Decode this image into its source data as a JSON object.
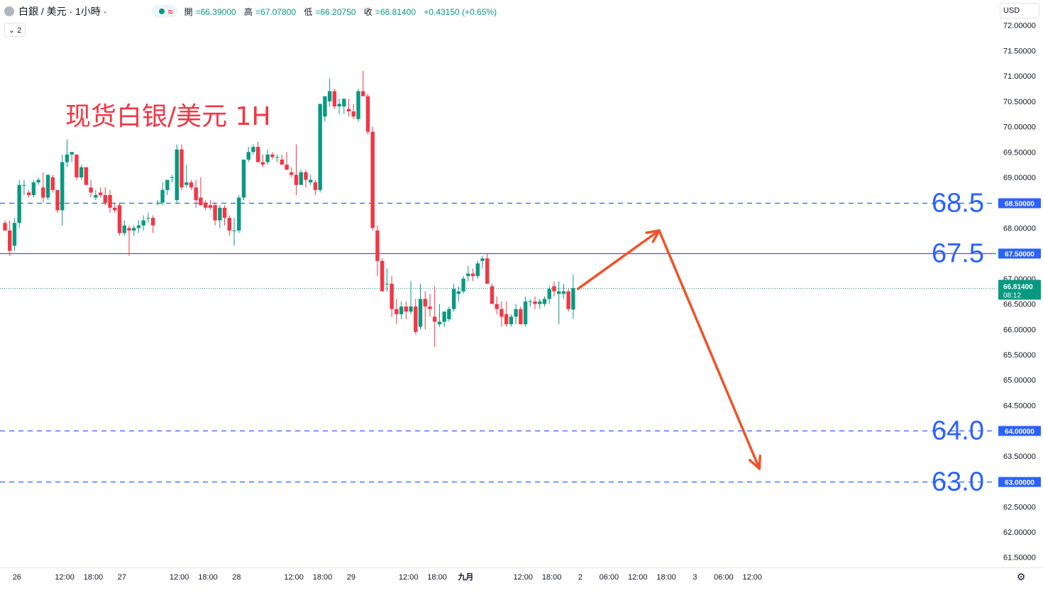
{
  "header": {
    "symbol": "白銀 / 美元 · 1小時 ·",
    "open_label": "開",
    "open": "66.39000",
    "high_label": "高",
    "high": "67.07800",
    "low_label": "低",
    "low": "66.20750",
    "close_label": "收",
    "close": "66.81400",
    "change": "+0.43150 (+0.65%)",
    "indicator_glyph": "≈"
  },
  "collapse_label": "⌄ 2",
  "currency": "USD",
  "colors": {
    "up": "#089981",
    "down": "#f23645",
    "level": "#2962ff",
    "arrow": "#f0522a",
    "title": "#f23645"
  },
  "chart_data": {
    "type": "candlestick",
    "title": "现货白银/美元 1H",
    "ylim": [
      61.3,
      72.5
    ],
    "y_ticks": [
      "61.50000",
      "62.00000",
      "62.50000",
      "63.00000",
      "63.50000",
      "64.00000",
      "64.50000",
      "65.00000",
      "65.50000",
      "66.00000",
      "66.50000",
      "67.00000",
      "67.50000",
      "68.00000",
      "68.50000",
      "69.00000",
      "69.50000",
      "70.00000",
      "70.50000",
      "71.00000",
      "71.50000",
      "72.00000"
    ],
    "x_ticks": [
      {
        "label": "26",
        "bar": 2.5
      },
      {
        "label": "12:00",
        "bar": 12.5
      },
      {
        "label": "18:00",
        "bar": 18.5
      },
      {
        "label": "27",
        "bar": 24.5
      },
      {
        "label": "12:00",
        "bar": 36.5
      },
      {
        "label": "18:00",
        "bar": 42.5
      },
      {
        "label": "28",
        "bar": 48.5
      },
      {
        "label": "12:00",
        "bar": 60.5
      },
      {
        "label": "18:00",
        "bar": 66.5
      },
      {
        "label": "29",
        "bar": 72.5
      },
      {
        "label": "12:00",
        "bar": 84.5
      },
      {
        "label": "18:00",
        "bar": 90.5
      },
      {
        "label": "九月",
        "bar": 96.5,
        "bold": true
      },
      {
        "label": "12:00",
        "bar": 108.5
      },
      {
        "label": "18:00",
        "bar": 114.5
      },
      {
        "label": "2",
        "bar": 120.5
      },
      {
        "label": "06:00",
        "bar": 126.5
      },
      {
        "label": "12:00",
        "bar": 132.5
      },
      {
        "label": "18:00",
        "bar": 138.5
      },
      {
        "label": "3",
        "bar": 144.5
      },
      {
        "label": "06:00",
        "bar": 150.5
      },
      {
        "label": "12:00",
        "bar": 156.5
      }
    ],
    "candles": [
      [
        68.1,
        68.15,
        67.95,
        67.95
      ],
      [
        67.95,
        68.15,
        67.45,
        67.55
      ],
      [
        67.65,
        68.2,
        67.55,
        68.1
      ],
      [
        68.1,
        68.95,
        68.0,
        68.85
      ],
      [
        68.85,
        68.95,
        68.65,
        68.85
      ],
      [
        68.7,
        68.75,
        68.6,
        68.65
      ],
      [
        68.65,
        68.95,
        68.6,
        68.9
      ],
      [
        68.9,
        69.0,
        68.85,
        68.95
      ],
      [
        68.8,
        69.1,
        68.5,
        68.6
      ],
      [
        68.6,
        69.05,
        68.55,
        69.05
      ],
      [
        69.0,
        69.05,
        68.7,
        68.75
      ],
      [
        68.75,
        68.75,
        68.3,
        68.35
      ],
      [
        68.35,
        69.45,
        68.05,
        69.3
      ],
      [
        69.3,
        69.75,
        69.2,
        69.45
      ],
      [
        69.45,
        69.5,
        69.3,
        69.5
      ],
      [
        69.45,
        69.45,
        68.95,
        69.0
      ],
      [
        69.0,
        69.25,
        68.95,
        69.2
      ],
      [
        69.2,
        69.2,
        68.85,
        68.85
      ],
      [
        68.8,
        68.95,
        68.6,
        68.7
      ],
      [
        68.6,
        68.75,
        68.55,
        68.65
      ],
      [
        68.7,
        68.8,
        68.6,
        68.65
      ],
      [
        68.65,
        68.8,
        68.45,
        68.5
      ],
      [
        68.65,
        68.75,
        68.3,
        68.4
      ],
      [
        68.4,
        68.5,
        68.3,
        68.35
      ],
      [
        68.45,
        68.5,
        67.85,
        67.9
      ],
      [
        67.9,
        68.15,
        67.85,
        68.05
      ],
      [
        68.0,
        68.05,
        67.45,
        67.95
      ],
      [
        67.95,
        68.05,
        67.85,
        68.0
      ],
      [
        68.0,
        68.15,
        67.9,
        68.05
      ],
      [
        68.05,
        68.25,
        67.95,
        68.15
      ],
      [
        68.2,
        68.3,
        68.1,
        68.2
      ],
      [
        68.2,
        68.25,
        67.9,
        68.05
      ],
      [
        68.5,
        68.55,
        68.45,
        68.5
      ],
      [
        68.5,
        68.9,
        68.45,
        68.75
      ],
      [
        68.75,
        68.95,
        68.65,
        68.95
      ],
      [
        69.0,
        69.05,
        68.9,
        69.0
      ],
      [
        68.55,
        69.65,
        68.5,
        69.55
      ],
      [
        69.55,
        69.65,
        68.75,
        68.8
      ],
      [
        68.85,
        69.25,
        68.8,
        68.9
      ],
      [
        68.9,
        68.95,
        68.75,
        68.8
      ],
      [
        68.8,
        68.95,
        68.4,
        68.55
      ],
      [
        68.6,
        69.0,
        68.45,
        68.45
      ],
      [
        68.5,
        68.55,
        68.35,
        68.4
      ],
      [
        68.45,
        68.55,
        68.35,
        68.4
      ],
      [
        68.45,
        68.5,
        68.05,
        68.15
      ],
      [
        68.15,
        68.45,
        68.0,
        68.4
      ],
      [
        68.4,
        68.45,
        68.05,
        68.2
      ],
      [
        68.2,
        68.25,
        67.85,
        67.95
      ],
      [
        67.95,
        68.2,
        67.65,
        67.95
      ],
      [
        67.95,
        68.65,
        67.9,
        68.6
      ],
      [
        68.6,
        69.35,
        68.55,
        69.35
      ],
      [
        69.35,
        69.6,
        69.3,
        69.5
      ],
      [
        69.5,
        69.65,
        69.45,
        69.6
      ],
      [
        69.6,
        69.7,
        69.3,
        69.3
      ],
      [
        69.3,
        69.45,
        69.2,
        69.25
      ],
      [
        69.3,
        69.55,
        69.25,
        69.45
      ],
      [
        69.45,
        69.5,
        69.35,
        69.4
      ],
      [
        69.4,
        69.45,
        69.3,
        69.4
      ],
      [
        69.35,
        69.45,
        69.25,
        69.25
      ],
      [
        69.25,
        69.5,
        69.2,
        69.15
      ],
      [
        69.1,
        69.2,
        69.0,
        69.05
      ],
      [
        69.05,
        69.65,
        68.65,
        68.85
      ],
      [
        68.85,
        69.15,
        68.85,
        69.1
      ],
      [
        69.1,
        69.15,
        68.8,
        68.95
      ],
      [
        68.9,
        69.05,
        68.85,
        68.95
      ],
      [
        68.9,
        68.95,
        68.65,
        68.75
      ],
      [
        68.75,
        70.45,
        68.7,
        70.45
      ],
      [
        70.2,
        70.6,
        70.1,
        70.6
      ],
      [
        70.5,
        70.95,
        70.4,
        70.7
      ],
      [
        70.7,
        70.75,
        70.35,
        70.4
      ],
      [
        70.4,
        70.55,
        70.25,
        70.45
      ],
      [
        70.4,
        70.55,
        70.25,
        70.55
      ],
      [
        70.35,
        70.55,
        70.2,
        70.3
      ],
      [
        70.3,
        70.45,
        70.15,
        70.2
      ],
      [
        70.15,
        70.75,
        70.1,
        70.7
      ],
      [
        70.7,
        71.1,
        70.6,
        70.6
      ],
      [
        70.6,
        70.65,
        69.85,
        69.9
      ],
      [
        69.9,
        70.0,
        67.95,
        68.0
      ],
      [
        67.95,
        68.05,
        67.05,
        67.35
      ],
      [
        67.35,
        67.4,
        66.85,
        66.75
      ],
      [
        66.9,
        67.2,
        66.75,
        66.9
      ],
      [
        66.9,
        67.05,
        66.25,
        66.4
      ],
      [
        66.4,
        66.6,
        66.1,
        66.3
      ],
      [
        66.3,
        66.55,
        66.2,
        66.45
      ],
      [
        66.45,
        66.55,
        66.2,
        66.35
      ],
      [
        66.35,
        66.95,
        66.3,
        66.45
      ],
      [
        66.45,
        66.6,
        65.9,
        65.95
      ],
      [
        66.05,
        66.9,
        66.0,
        66.6
      ],
      [
        66.6,
        66.75,
        66.0,
        66.45
      ],
      [
        66.45,
        66.7,
        66.25,
        66.4
      ],
      [
        66.25,
        66.85,
        65.65,
        66.15
      ],
      [
        66.1,
        66.5,
        66.05,
        66.15
      ],
      [
        66.15,
        66.35,
        66.05,
        66.35
      ],
      [
        66.2,
        66.45,
        66.15,
        66.4
      ],
      [
        66.4,
        66.9,
        66.35,
        66.8
      ],
      [
        66.7,
        66.85,
        66.55,
        66.75
      ],
      [
        66.75,
        67.05,
        66.7,
        67.0
      ],
      [
        67.05,
        67.25,
        66.95,
        67.1
      ],
      [
        67.1,
        67.2,
        66.95,
        67.05
      ],
      [
        67.05,
        67.35,
        67.0,
        67.3
      ]
    ],
    "candles_tail": [
      [
        67.35,
        67.45,
        67.2,
        67.4
      ],
      [
        67.4,
        67.5,
        66.95,
        66.9
      ],
      [
        66.85,
        66.9,
        66.6,
        66.5
      ],
      [
        66.5,
        66.65,
        66.3,
        66.4
      ],
      [
        66.4,
        66.55,
        66.05,
        66.25
      ],
      [
        66.3,
        66.55,
        66.05,
        66.1
      ],
      [
        66.1,
        66.3,
        66.05,
        66.25
      ],
      [
        66.25,
        66.5,
        66.1,
        66.4
      ],
      [
        66.4,
        66.45,
        66.1,
        66.1
      ],
      [
        66.1,
        66.65,
        66.05,
        66.55
      ],
      [
        66.55,
        66.6,
        66.45,
        66.55
      ],
      [
        66.55,
        66.65,
        66.4,
        66.5
      ],
      [
        66.5,
        66.6,
        66.4,
        66.55
      ],
      [
        66.5,
        66.65,
        66.45,
        66.6
      ],
      [
        66.6,
        66.85,
        66.5,
        66.8
      ],
      [
        66.85,
        66.95,
        66.65,
        66.75
      ],
      [
        66.7,
        66.95,
        66.1,
        66.75
      ],
      [
        66.7,
        66.9,
        66.6,
        66.75
      ],
      [
        66.75,
        66.8,
        66.35,
        66.4
      ],
      [
        66.39,
        67.078,
        66.2075,
        66.814
      ]
    ],
    "levels": [
      {
        "value": 68.5,
        "label": "68.5",
        "tag": "68.50000",
        "style": "dashed"
      },
      {
        "value": 67.5,
        "label": "67.5",
        "tag": "67.50000",
        "style": "solid"
      },
      {
        "value": 64.0,
        "label": "64.0",
        "tag": "64.00000",
        "style": "dashed"
      },
      {
        "value": 63.0,
        "label": "63.0",
        "tag": "63.00000",
        "style": "dashed"
      }
    ],
    "last_price": {
      "value": 66.814,
      "tag": "66.81400",
      "countdown": "08:12"
    },
    "projection": [
      {
        "bar": 120,
        "price": 66.8
      },
      {
        "bar": 137,
        "price": 67.95
      },
      {
        "bar": 158,
        "price": 63.25
      }
    ]
  }
}
